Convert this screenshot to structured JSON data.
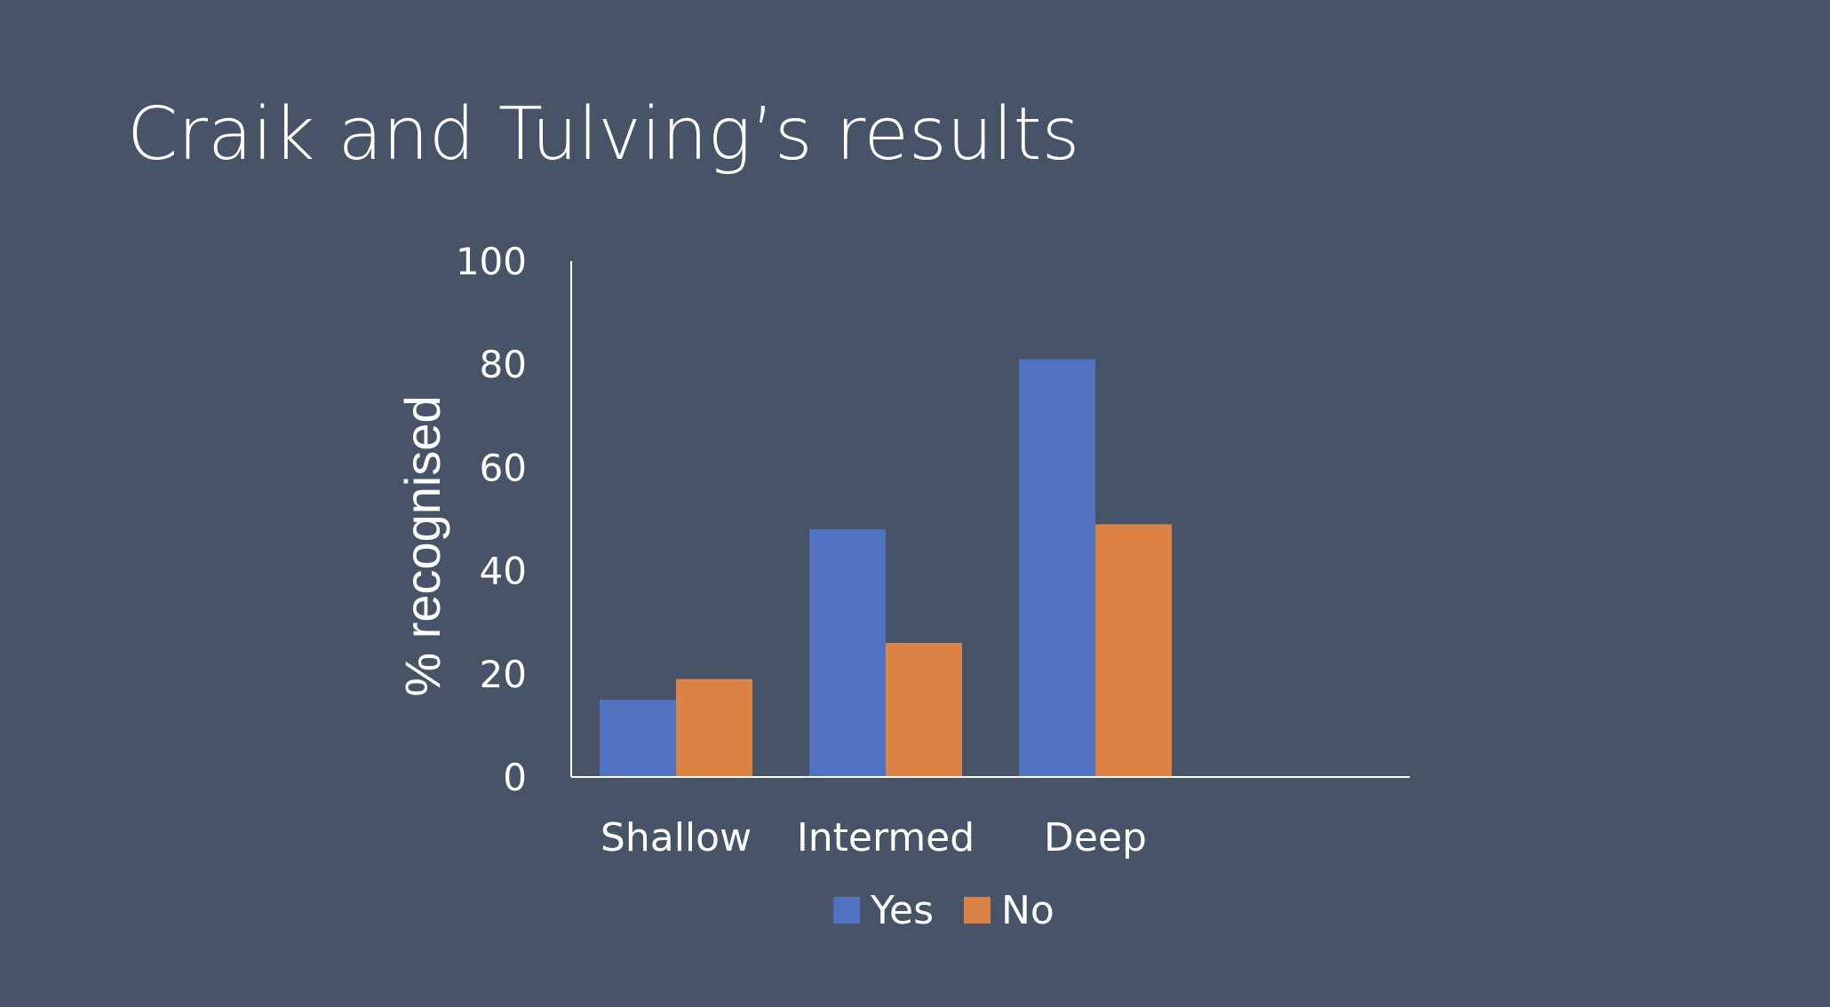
{
  "slide": {
    "title": "Craik and Tulving’s results"
  },
  "colors": {
    "background": "#475467",
    "axis": "#ffffff",
    "text": "#ffffff"
  },
  "chart_data": {
    "type": "bar",
    "categories": [
      "Shallow",
      "Intermed",
      "Deep"
    ],
    "series": [
      {
        "name": "Yes",
        "color": "#5072c0",
        "values": [
          15,
          48,
          81
        ]
      },
      {
        "name": "No",
        "color": "#dd8245",
        "values": [
          19,
          26,
          49
        ]
      }
    ],
    "ylabel": "% recognised",
    "xlabel": "",
    "ylim": [
      0,
      100
    ],
    "yticks": [
      0,
      20,
      40,
      60,
      80,
      100
    ],
    "grid": false,
    "legend": "bottom"
  }
}
